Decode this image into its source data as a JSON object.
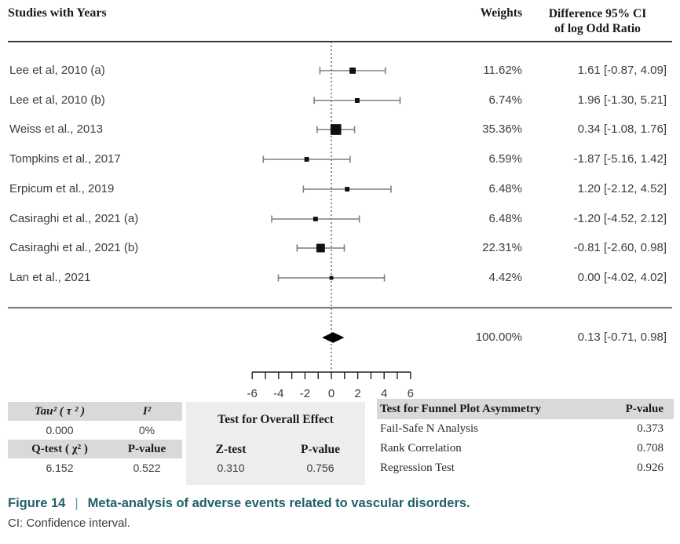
{
  "header": {
    "studies_label": "Studies with Years",
    "weights_label": "Weights",
    "diff_label_line1": "Difference 95% CI",
    "diff_label_line2": "of log Odd Ratio"
  },
  "chart_data": {
    "type": "forest",
    "title": "Meta-analysis of adverse events related to vascular disorders",
    "x_axis": {
      "range": [
        -6,
        6
      ],
      "tick_step": 1,
      "labeled_ticks": [
        -6,
        -4,
        -2,
        0,
        2,
        4,
        6
      ],
      "zero_line": 0
    },
    "studies": [
      {
        "name": "Lee et  al, 2010 (a)",
        "weight_label": "11.62%",
        "weight_pct": 11.62,
        "estimate": 1.61,
        "ci_low": -0.87,
        "ci_high": 4.09,
        "display": "1.61 [-0.87, 4.09]"
      },
      {
        "name": "Lee et al, 2010 (b)",
        "weight_label": "6.74%",
        "weight_pct": 6.74,
        "estimate": 1.96,
        "ci_low": -1.3,
        "ci_high": 5.21,
        "display": "1.96 [-1.30, 5.21]"
      },
      {
        "name": "Weiss et al., 2013",
        "weight_label": "35.36%",
        "weight_pct": 35.36,
        "estimate": 0.34,
        "ci_low": -1.08,
        "ci_high": 1.76,
        "display": "0.34 [-1.08, 1.76]"
      },
      {
        "name": "Tompkins et al., 2017",
        "weight_label": "6.59%",
        "weight_pct": 6.59,
        "estimate": -1.87,
        "ci_low": -5.16,
        "ci_high": 1.42,
        "display": "-1.87 [-5.16, 1.42]"
      },
      {
        "name": "Erpicum et al., 2019",
        "weight_label": "6.48%",
        "weight_pct": 6.48,
        "estimate": 1.2,
        "ci_low": -2.12,
        "ci_high": 4.52,
        "display": "1.20 [-2.12, 4.52]"
      },
      {
        "name": "Casiraghi  et al., 2021 (a)",
        "weight_label": "6.48%",
        "weight_pct": 6.48,
        "estimate": -1.2,
        "ci_low": -4.52,
        "ci_high": 2.12,
        "display": "-1.20 [-4.52, 2.12]"
      },
      {
        "name": "Casiraghi  et al., 2021 (b)",
        "weight_label": "22.31%",
        "weight_pct": 22.31,
        "estimate": -0.81,
        "ci_low": -2.6,
        "ci_high": 0.98,
        "display": "-0.81 [-2.60, 0.98]"
      },
      {
        "name": "Lan et al., 2021",
        "weight_label": "4.42%",
        "weight_pct": 4.42,
        "estimate": 0.0,
        "ci_low": -4.02,
        "ci_high": 4.02,
        "display": "0.00 [-4.02, 4.02]"
      }
    ],
    "overall": {
      "weight_label": "100.00%",
      "weight_pct": 100.0,
      "estimate": 0.13,
      "ci_low": -0.71,
      "ci_high": 0.98,
      "display": "0.13 [-0.71, 0.98]"
    }
  },
  "stats": {
    "heterogeneity": {
      "tau_label": "Tau² ( τ ² )",
      "tau_value": "0.000",
      "i2_label": "I²",
      "i2_value": "0%",
      "qtest_label": "Q-test ( χ² )",
      "qtest_value": "6.152",
      "pvalue_label": "P-value",
      "pvalue_value": "0.522"
    },
    "overall_effect": {
      "title": "Test for Overall Effect",
      "ztest_label": "Z-test",
      "ztest_value": "0.310",
      "pvalue_label": "P-value",
      "pvalue_value": "0.756"
    },
    "funnel": {
      "title": "Test for Funnel Plot Asymmetry",
      "pvalue_label": "P-value",
      "rows": [
        {
          "label": "Fail-Safe N Analysis",
          "value": "0.373"
        },
        {
          "label": "Rank Correlation",
          "value": "0.708"
        },
        {
          "label": "Regression Test",
          "value": "0.926"
        }
      ]
    }
  },
  "caption": {
    "figure_label": "Figure 14",
    "separator": "|",
    "title": "Meta-analysis of adverse events related to vascular disorders.",
    "note": "CI: Confidence interval."
  },
  "colors": {
    "accent_teal": "#21606a",
    "separator_teal": "#4aa3ab",
    "marker_black": "#101010",
    "whisker_gray": "#7f7f7f",
    "rule_dark": "#3b3b3b",
    "table_header_bg": "#d9d9d9",
    "middle_block_bg": "#ededed",
    "text_dark": "#3d3d3d"
  }
}
